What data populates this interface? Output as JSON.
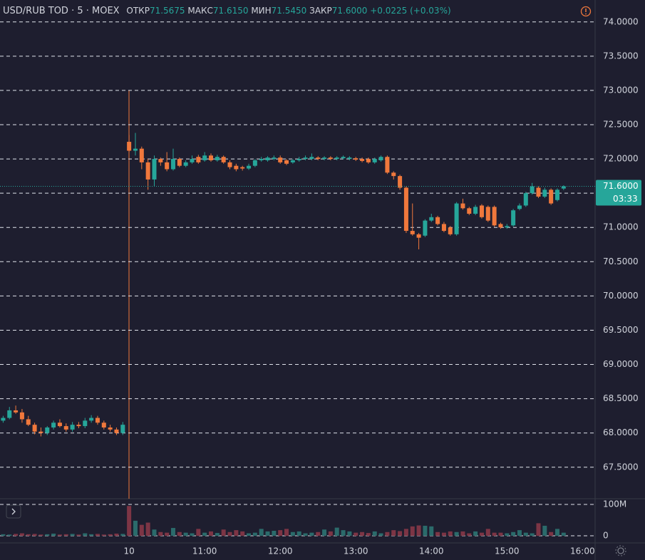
{
  "header": {
    "symbol": "USD/RUB TOD · 5 · MOEX",
    "open_label": "ОТКР",
    "open": "71.5675",
    "high_label": "МАКС",
    "high": "71.6150",
    "low_label": "МИН",
    "low": "71.5450",
    "close_label": "ЗАКР",
    "close": "71.6000",
    "change": "+0.0225 (+0.03%)"
  },
  "chart_data": {
    "type": "candlestick",
    "x": [
      0,
      1,
      2,
      3,
      4,
      5,
      6,
      7,
      8,
      9,
      10,
      11,
      12,
      13,
      14,
      15,
      16,
      17,
      18,
      19,
      20,
      21,
      22,
      23,
      24,
      25,
      26,
      27,
      28,
      29,
      30,
      31,
      32,
      33,
      34,
      35,
      36,
      37,
      38,
      39,
      40,
      41,
      42,
      43,
      44,
      45,
      46,
      47,
      48,
      49,
      50,
      51,
      52,
      53,
      54,
      55,
      56,
      57,
      58,
      59,
      60,
      61,
      62,
      63,
      64,
      65,
      66,
      67,
      68,
      69,
      70,
      71,
      72,
      73,
      74,
      75,
      76,
      77,
      78,
      79,
      80,
      81,
      82,
      83,
      84,
      85,
      86,
      87,
      88,
      89
    ],
    "open": [
      68.18,
      68.22,
      68.33,
      68.3,
      68.2,
      68.12,
      68.02,
      68.0,
      68.08,
      68.15,
      68.1,
      68.05,
      68.12,
      68.1,
      68.18,
      68.22,
      68.15,
      68.08,
      68.05,
      68.0,
      72.25,
      72.12,
      72.15,
      71.95,
      71.7,
      72.0,
      71.95,
      71.85,
      72.0,
      71.9,
      71.95,
      72.03,
      71.98,
      72.05,
      71.98,
      72.03,
      71.95,
      71.9,
      71.88,
      71.86,
      71.9,
      71.98,
      71.98,
      72.0,
      72.02,
      71.98,
      71.95,
      71.98,
      72.0,
      72.0,
      72.02,
      72.0,
      72.02,
      72.0,
      72.01,
      72.0,
      72.01,
      72.0,
      72.0,
      71.95,
      71.98,
      72.03,
      71.8,
      71.75,
      71.58,
      70.95,
      70.9,
      70.88,
      71.1,
      71.15,
      71.05,
      71.0,
      70.9,
      71.35,
      71.28,
      71.2,
      71.32,
      71.3,
      71.3,
      71.05,
      71.0,
      71.03,
      71.27,
      71.32,
      71.5,
      71.58,
      71.45,
      71.55,
      71.4,
      71.5675
    ],
    "high": [
      68.25,
      68.38,
      68.4,
      68.35,
      68.25,
      68.15,
      68.08,
      68.1,
      68.18,
      68.2,
      68.14,
      68.16,
      68.16,
      68.22,
      68.26,
      68.25,
      68.18,
      68.12,
      68.08,
      68.16,
      72.35,
      72.38,
      72.18,
      72.0,
      72.05,
      72.02,
      72.1,
      72.15,
      72.02,
      71.98,
      72.05,
      72.06,
      72.1,
      72.08,
      72.06,
      72.05,
      71.98,
      71.93,
      71.9,
      71.93,
      72.0,
      72.03,
      72.04,
      72.05,
      72.05,
      72.0,
      72.0,
      72.03,
      72.05,
      72.08,
      72.04,
      72.04,
      72.04,
      72.04,
      72.05,
      72.04,
      72.03,
      72.02,
      72.02,
      72.02,
      72.05,
      72.05,
      71.82,
      71.77,
      71.6,
      71.35,
      70.92,
      71.12,
      71.2,
      71.17,
      71.08,
      71.02,
      71.37,
      71.42,
      71.3,
      71.33,
      71.34,
      71.32,
      71.32,
      71.07,
      71.05,
      71.27,
      71.35,
      71.52,
      71.65,
      71.6,
      71.58,
      71.57,
      71.57,
      71.615
    ],
    "low": [
      68.15,
      68.2,
      68.28,
      68.15,
      68.1,
      67.98,
      67.95,
      67.97,
      68.05,
      68.08,
      68.02,
      68.02,
      68.07,
      68.07,
      68.15,
      68.12,
      68.05,
      68.02,
      67.97,
      67.97,
      72.1,
      72.05,
      71.85,
      71.55,
      71.6,
      71.9,
      71.82,
      71.83,
      71.88,
      71.88,
      71.93,
      71.93,
      71.96,
      71.96,
      71.96,
      71.93,
      71.85,
      71.82,
      71.83,
      71.84,
      71.88,
      71.96,
      71.96,
      71.98,
      71.93,
      71.91,
      71.93,
      71.96,
      71.98,
      71.98,
      71.98,
      71.98,
      71.98,
      71.98,
      71.99,
      71.98,
      71.97,
      71.95,
      71.93,
      71.93,
      71.96,
      71.78,
      71.7,
      71.55,
      70.92,
      70.88,
      70.68,
      70.86,
      71.08,
      71.03,
      70.93,
      70.88,
      70.88,
      71.26,
      71.18,
      71.18,
      71.13,
      71.08,
      71.01,
      70.98,
      70.98,
      71.01,
      71.25,
      71.3,
      71.48,
      71.43,
      71.43,
      71.33,
      71.38,
      71.545
    ],
    "close": [
      68.22,
      68.33,
      68.3,
      68.2,
      68.12,
      68.02,
      68.0,
      68.08,
      68.15,
      68.1,
      68.05,
      68.12,
      68.1,
      68.18,
      68.22,
      68.15,
      68.08,
      68.05,
      68.0,
      68.12,
      72.12,
      72.15,
      71.95,
      71.7,
      72.0,
      71.95,
      71.85,
      72.0,
      71.9,
      71.95,
      72.0,
      71.95,
      72.05,
      71.98,
      72.03,
      71.95,
      71.88,
      71.85,
      71.86,
      71.9,
      71.98,
      72.0,
      72.02,
      72.02,
      71.95,
      71.93,
      71.98,
      72.0,
      72.02,
      72.03,
      72.0,
      72.02,
      72.0,
      72.02,
      72.03,
      72.02,
      71.99,
      71.97,
      71.95,
      72.0,
      72.03,
      71.8,
      71.75,
      71.58,
      70.95,
      70.9,
      70.85,
      71.1,
      71.15,
      71.05,
      70.95,
      70.9,
      71.35,
      71.28,
      71.2,
      71.3,
      71.15,
      71.1,
      71.03,
      71.0,
      71.02,
      71.25,
      71.32,
      71.5,
      71.6,
      71.45,
      71.55,
      71.35,
      71.55,
      71.6
    ],
    "volume": [
      5,
      4,
      6,
      8,
      5,
      6,
      4,
      5,
      7,
      4,
      5,
      6,
      4,
      8,
      5,
      6,
      4,
      5,
      7,
      6,
      95,
      48,
      35,
      42,
      20,
      12,
      10,
      25,
      12,
      10,
      8,
      22,
      10,
      14,
      9,
      20,
      12,
      18,
      14,
      8,
      10,
      22,
      14,
      16,
      18,
      22,
      12,
      14,
      8,
      10,
      12,
      20,
      14,
      26,
      18,
      14,
      10,
      12,
      9,
      14,
      8,
      12,
      18,
      15,
      22,
      30,
      33,
      32,
      30,
      12,
      10,
      14,
      12,
      14,
      8,
      14,
      10,
      22,
      10,
      10,
      8,
      12,
      18,
      10,
      8,
      40,
      32,
      12,
      22,
      10
    ],
    "up_color": "#26a69a",
    "down_color": "#f0783c",
    "volume_up_color": "#2b6b6b",
    "volume_down_color": "#7d3545",
    "xlim": [
      -0.5,
      94
    ],
    "xticks": [
      {
        "value": 20,
        "label": "10"
      },
      {
        "value": 32,
        "label": "11:00"
      },
      {
        "value": 44,
        "label": "12:00"
      },
      {
        "value": 56,
        "label": "13:00"
      },
      {
        "value": 68,
        "label": "14:00"
      },
      {
        "value": 80,
        "label": "15:00"
      },
      {
        "value": 92,
        "label": "16:00"
      }
    ],
    "ylim": [
      67.04,
      74.32
    ],
    "yticks": [
      {
        "value": 67.5,
        "label": "67.5000"
      },
      {
        "value": 68,
        "label": "68.0000"
      },
      {
        "value": 68.5,
        "label": "68.5000"
      },
      {
        "value": 69,
        "label": "69.0000"
      },
      {
        "value": 69.5,
        "label": "69.5000"
      },
      {
        "value": 70,
        "label": "70.0000"
      },
      {
        "value": 70.5,
        "label": "70.5000"
      },
      {
        "value": 71,
        "label": "71.0000"
      },
      {
        "value": 71.5,
        "label": "71.5000"
      },
      {
        "value": 72,
        "label": "72.0000"
      },
      {
        "value": 72.5,
        "label": "72.5000"
      },
      {
        "value": 73,
        "label": "73.0000"
      },
      {
        "value": 73.5,
        "label": "73.5000"
      },
      {
        "value": 74,
        "label": "74.0000"
      }
    ],
    "volume_ylim": [
      -18,
      118
    ],
    "volume_ticks": [
      {
        "value": 0,
        "label": "0"
      },
      {
        "value": 100,
        "label": "100M"
      }
    ],
    "grid": true,
    "last_price": {
      "value": 71.6,
      "label": "71.6000"
    },
    "countdown": "03:33"
  }
}
